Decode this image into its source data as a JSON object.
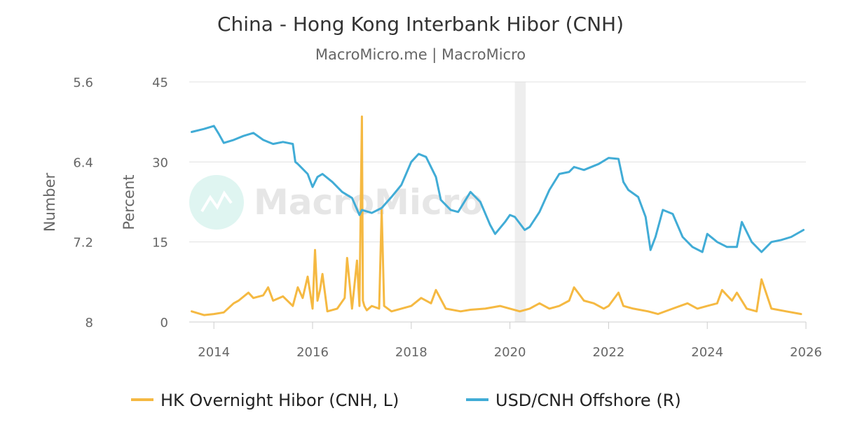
{
  "header": {
    "title": "China - Hong Kong Interbank Hibor (CNH)",
    "subtitle": "MacroMicro.me | MacroMicro"
  },
  "watermark": {
    "text": "MacroMicro"
  },
  "chart_data": {
    "type": "line",
    "title": "China - Hong Kong Interbank Hibor (CNH)",
    "subtitle": "MacroMicro.me | MacroMicro",
    "xlabel": "",
    "x_ticks": [
      "2014",
      "2016",
      "2018",
      "2020",
      "2022",
      "2024",
      "2026"
    ],
    "xlim": [
      2013.5,
      2026.0
    ],
    "grid": true,
    "legend_position": "bottom",
    "shaded_periods": [
      [
        2020.1,
        2020.32
      ]
    ],
    "y_left": {
      "label": "Percent",
      "range": [
        0,
        45
      ],
      "ticks": [
        "45",
        "30",
        "15",
        "0"
      ]
    },
    "y_right": {
      "label": "Number",
      "range": [
        5.6,
        8.0
      ],
      "inverted": true,
      "ticks": [
        "5.6",
        "6.4",
        "7.2",
        "8"
      ]
    },
    "series": [
      {
        "name": "HK Overnight Hibor (CNH, L)",
        "axis": "left",
        "color": "#f5b942",
        "x": [
          2013.55,
          2013.8,
          2014.0,
          2014.2,
          2014.4,
          2014.5,
          2014.7,
          2014.8,
          2015.0,
          2015.1,
          2015.2,
          2015.4,
          2015.6,
          2015.7,
          2015.8,
          2015.9,
          2016.0,
          2016.05,
          2016.1,
          2016.15,
          2016.2,
          2016.3,
          2016.5,
          2016.65,
          2016.7,
          2016.8,
          2016.9,
          2016.95,
          2017.0,
          2017.02,
          2017.05,
          2017.1,
          2017.2,
          2017.35,
          2017.4,
          2017.45,
          2017.6,
          2017.8,
          2018.0,
          2018.2,
          2018.4,
          2018.5,
          2018.7,
          2019.0,
          2019.2,
          2019.5,
          2019.8,
          2020.0,
          2020.2,
          2020.4,
          2020.6,
          2020.8,
          2021.0,
          2021.2,
          2021.3,
          2021.5,
          2021.7,
          2021.9,
          2022.0,
          2022.2,
          2022.3,
          2022.5,
          2022.8,
          2023.0,
          2023.3,
          2023.6,
          2023.8,
          2024.0,
          2024.2,
          2024.3,
          2024.5,
          2024.6,
          2024.8,
          2025.0,
          2025.1,
          2025.3,
          2025.6,
          2025.9
        ],
        "values": [
          2.0,
          1.3,
          1.5,
          1.8,
          3.5,
          4.0,
          5.5,
          4.5,
          5.0,
          6.5,
          4.0,
          4.8,
          3.0,
          6.5,
          4.5,
          8.5,
          2.5,
          13.5,
          4.0,
          6.0,
          9.0,
          2.0,
          2.5,
          4.5,
          12.0,
          2.5,
          11.5,
          3.0,
          38.5,
          4.0,
          3.0,
          2.2,
          3.0,
          2.5,
          21.0,
          3.0,
          2.0,
          2.5,
          3.0,
          4.5,
          3.5,
          6.0,
          2.5,
          2.0,
          2.3,
          2.5,
          3.0,
          2.5,
          2.0,
          2.5,
          3.5,
          2.5,
          3.0,
          4.0,
          6.5,
          4.0,
          3.5,
          2.5,
          3.0,
          5.5,
          3.0,
          2.5,
          2.0,
          1.5,
          2.5,
          3.5,
          2.5,
          3.0,
          3.5,
          6.0,
          4.0,
          5.5,
          2.5,
          2.0,
          8.0,
          2.5,
          2.0,
          1.5
        ]
      },
      {
        "name": "USD/CNH Offshore (R)",
        "axis": "right",
        "color": "#41acd6",
        "x": [
          2013.55,
          2013.8,
          2014.0,
          2014.1,
          2014.2,
          2014.4,
          2014.6,
          2014.8,
          2015.0,
          2015.2,
          2015.4,
          2015.6,
          2015.65,
          2015.7,
          2015.9,
          2016.0,
          2016.1,
          2016.2,
          2016.4,
          2016.6,
          2016.8,
          2016.95,
          2017.0,
          2017.2,
          2017.4,
          2017.6,
          2017.8,
          2018.0,
          2018.15,
          2018.3,
          2018.5,
          2018.6,
          2018.8,
          2018.95,
          2019.2,
          2019.4,
          2019.6,
          2019.7,
          2019.9,
          2020.0,
          2020.1,
          2020.3,
          2020.4,
          2020.6,
          2020.8,
          2021.0,
          2021.2,
          2021.3,
          2021.5,
          2021.8,
          2022.0,
          2022.2,
          2022.3,
          2022.4,
          2022.6,
          2022.75,
          2022.85,
          2022.95,
          2023.1,
          2023.3,
          2023.5,
          2023.7,
          2023.9,
          2024.0,
          2024.2,
          2024.4,
          2024.6,
          2024.7,
          2024.9,
          2025.1,
          2025.3,
          2025.5,
          2025.7,
          2025.95
        ],
        "values": [
          6.1,
          6.07,
          6.04,
          6.12,
          6.21,
          6.18,
          6.14,
          6.11,
          6.18,
          6.22,
          6.2,
          6.22,
          6.4,
          6.42,
          6.52,
          6.65,
          6.55,
          6.52,
          6.6,
          6.7,
          6.76,
          6.93,
          6.88,
          6.91,
          6.86,
          6.75,
          6.63,
          6.4,
          6.32,
          6.35,
          6.55,
          6.78,
          6.88,
          6.9,
          6.7,
          6.8,
          7.03,
          7.12,
          7.0,
          6.93,
          6.95,
          7.08,
          7.05,
          6.9,
          6.68,
          6.52,
          6.5,
          6.45,
          6.48,
          6.42,
          6.36,
          6.37,
          6.6,
          6.68,
          6.75,
          6.95,
          7.28,
          7.15,
          6.88,
          6.92,
          7.15,
          7.25,
          7.3,
          7.12,
          7.2,
          7.25,
          7.25,
          7.0,
          7.2,
          7.3,
          7.2,
          7.18,
          7.15,
          7.08
        ]
      }
    ]
  }
}
